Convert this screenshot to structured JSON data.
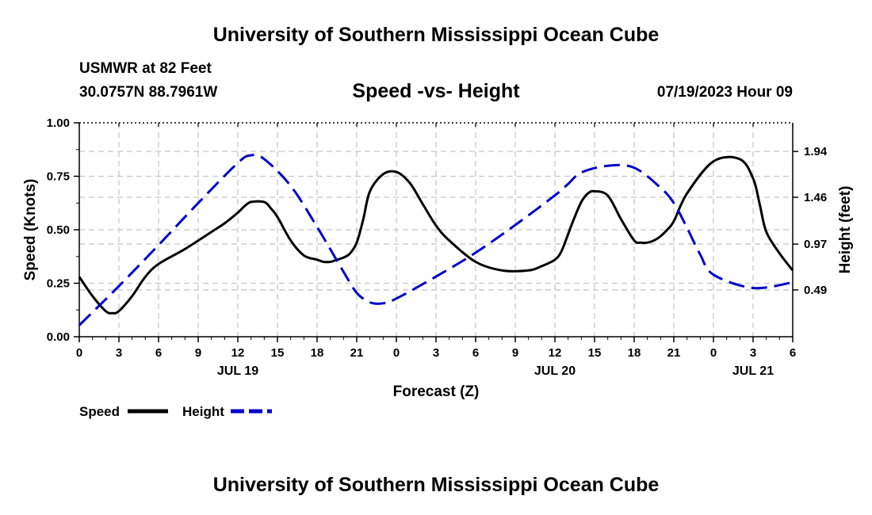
{
  "header": {
    "title": "University of Southern Mississippi Ocean Cube",
    "station": "USMWR at 82 Feet",
    "coordinates": "30.0757N  88.7961W",
    "datetime": "07/19/2023 Hour 09",
    "footer_title": "University of Southern Mississippi Ocean Cube"
  },
  "chart_data": {
    "type": "line",
    "title": "Speed -vs- Height",
    "xlabel": "Forecast (Z)",
    "ylabel": "Speed (Knots)",
    "y2label": "Height (feet)",
    "x_range_hours": [
      0,
      54
    ],
    "ylim": [
      0,
      1.0
    ],
    "y2lim": [
      0,
      2.24
    ],
    "x_ticks": [
      0,
      3,
      6,
      9,
      12,
      15,
      18,
      21,
      24,
      27,
      30,
      33,
      36,
      39,
      42,
      45,
      48,
      51,
      54
    ],
    "x_tick_labels": [
      "0",
      "3",
      "6",
      "9",
      "12",
      "15",
      "18",
      "21",
      "0",
      "3",
      "6",
      "9",
      "12",
      "15",
      "18",
      "21",
      "0",
      "3",
      "6"
    ],
    "date_labels": [
      {
        "hour": 12,
        "label": "JUL 19"
      },
      {
        "hour": 36,
        "label": "JUL 20"
      },
      {
        "hour": 51,
        "label": "JUL 21"
      }
    ],
    "y_ticks": [
      0.0,
      0.25,
      0.5,
      0.75,
      1.0
    ],
    "y_tick_labels": [
      "0.00",
      "0.25",
      "0.50",
      "0.75",
      "1.00"
    ],
    "y2_ticks": [
      0.49,
      0.97,
      1.46,
      1.94
    ],
    "y2_tick_labels": [
      "0.49",
      "0.97",
      "1.46",
      "1.94"
    ],
    "grid": true,
    "legend": [
      {
        "label": "Speed",
        "color": "#000000",
        "style": "solid"
      },
      {
        "label": "Height",
        "color": "#0000cc",
        "style": "dashed"
      }
    ],
    "series": [
      {
        "name": "Speed",
        "axis": "left",
        "color": "#000000",
        "x": [
          0,
          1,
          2,
          2.5,
          3,
          4,
          5,
          6,
          8,
          10,
          11,
          12,
          12.5,
          13,
          14,
          14.5,
          15,
          16,
          17,
          18,
          18.5,
          19,
          19.5,
          20,
          20.5,
          21,
          21.5,
          22,
          23,
          24,
          25,
          26,
          27,
          28,
          30,
          32,
          34,
          35,
          36,
          36.5,
          37,
          37.5,
          38,
          38.5,
          39,
          40,
          41,
          42,
          42.5,
          43,
          43.5,
          44,
          44.5,
          45,
          46,
          48,
          50,
          51,
          51.5,
          52,
          53,
          54
        ],
        "values": [
          0.28,
          0.19,
          0.12,
          0.11,
          0.12,
          0.19,
          0.28,
          0.34,
          0.41,
          0.49,
          0.53,
          0.58,
          0.61,
          0.63,
          0.63,
          0.6,
          0.56,
          0.45,
          0.38,
          0.36,
          0.35,
          0.35,
          0.36,
          0.37,
          0.39,
          0.44,
          0.55,
          0.68,
          0.76,
          0.77,
          0.72,
          0.62,
          0.52,
          0.45,
          0.35,
          0.31,
          0.31,
          0.33,
          0.36,
          0.4,
          0.48,
          0.56,
          0.63,
          0.67,
          0.68,
          0.66,
          0.55,
          0.45,
          0.44,
          0.44,
          0.45,
          0.47,
          0.5,
          0.54,
          0.67,
          0.82,
          0.83,
          0.74,
          0.62,
          0.49,
          0.39,
          0.31
        ],
        "note": "values listed are approximate readings"
      },
      {
        "name": "Height",
        "axis": "right",
        "color": "#0000cc",
        "x": [
          0,
          3,
          6,
          9,
          12,
          13,
          14,
          16,
          18,
          20,
          21,
          22,
          23,
          24,
          27,
          30,
          33,
          36,
          37,
          38,
          40,
          42,
          44,
          45,
          46,
          47,
          48,
          51,
          54
        ],
        "values": [
          0.12,
          0.53,
          0.96,
          1.4,
          1.82,
          1.9,
          1.86,
          1.58,
          1.15,
          0.68,
          0.46,
          0.36,
          0.35,
          0.4,
          0.63,
          0.88,
          1.17,
          1.48,
          1.6,
          1.72,
          1.79,
          1.77,
          1.56,
          1.4,
          1.14,
          0.86,
          0.65,
          0.51,
          0.57
        ],
        "note": "values listed are approximate readings"
      }
    ]
  }
}
